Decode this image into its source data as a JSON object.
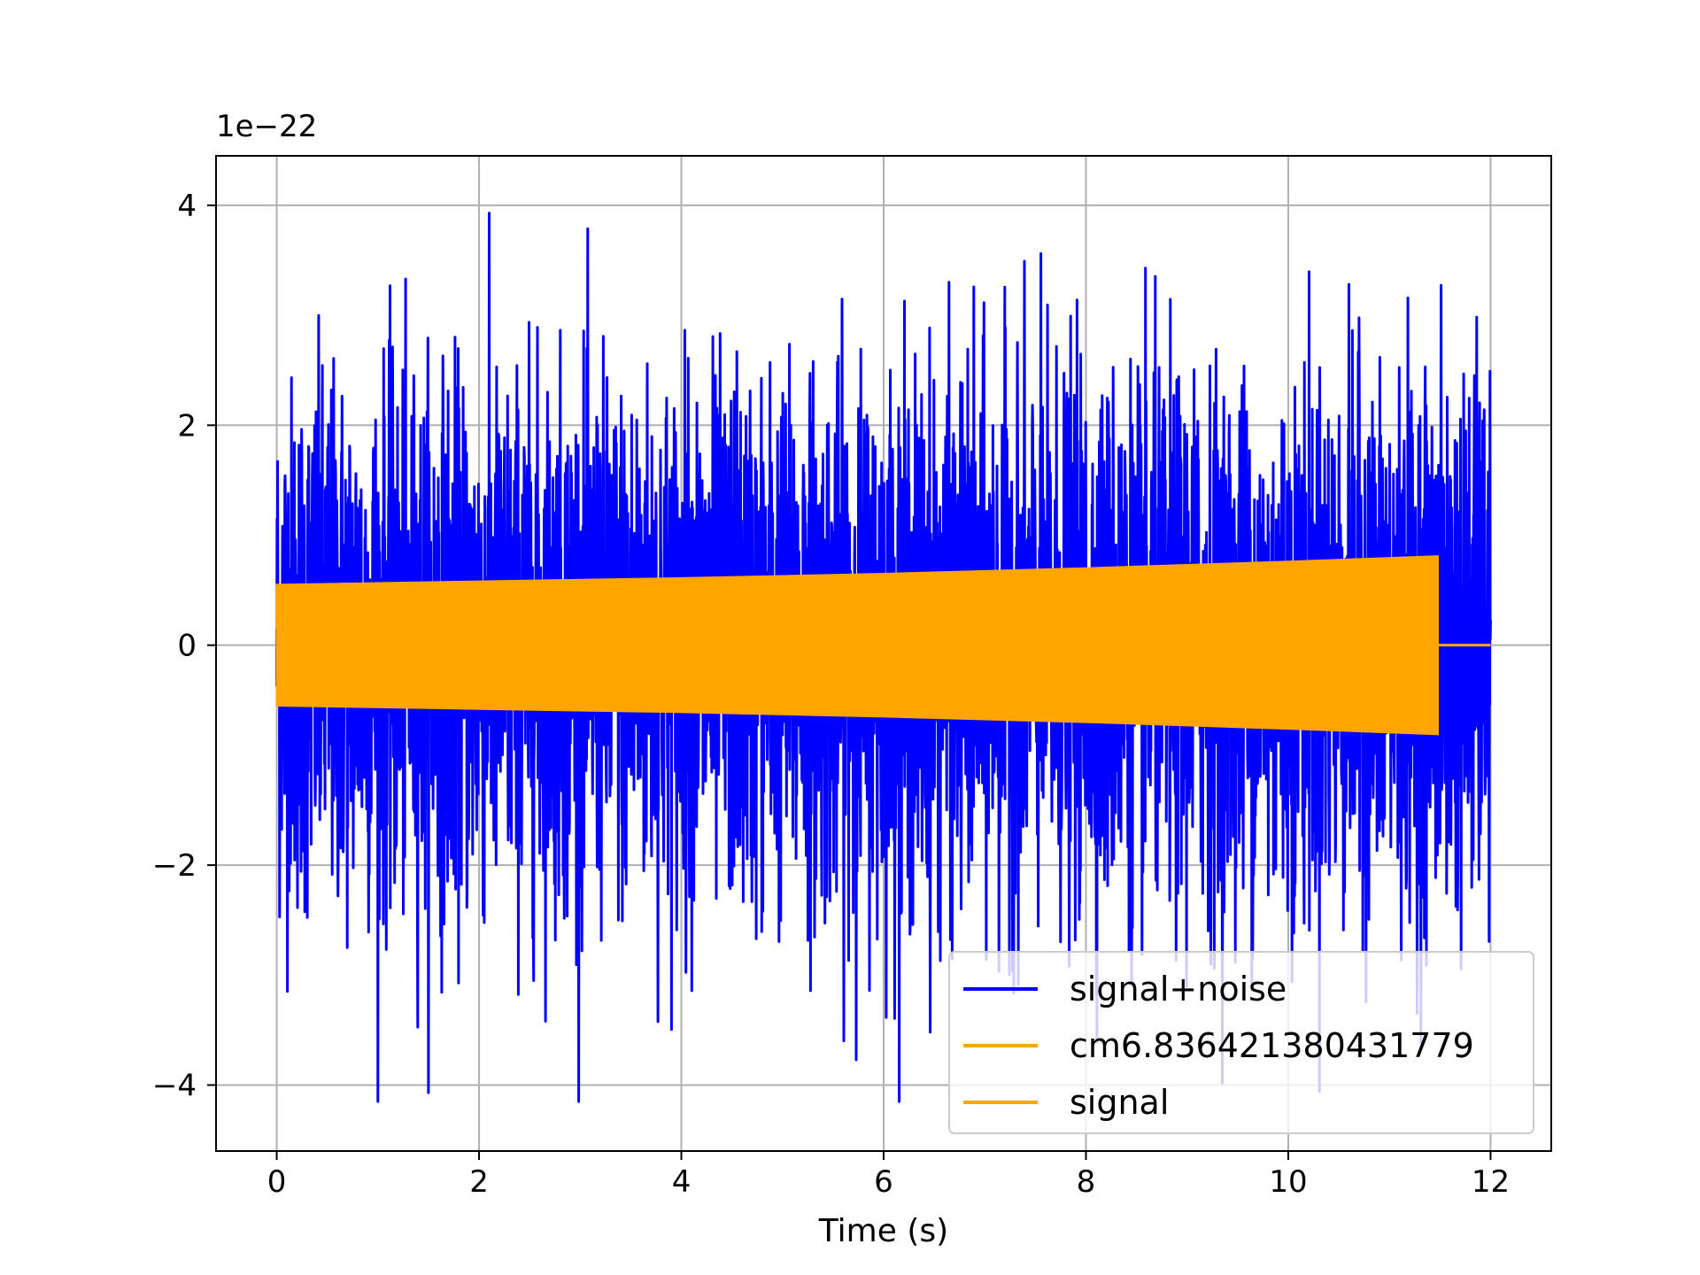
{
  "chart_data": {
    "type": "line",
    "title": "",
    "xlabel": "Time (s)",
    "ylabel": "",
    "y_offset_text": "1e−22",
    "xlim": [
      -0.6,
      12.6
    ],
    "ylim": [
      -4.6,
      4.45
    ],
    "x_ticks": [
      0,
      2,
      4,
      6,
      8,
      10,
      12
    ],
    "x_tick_labels": [
      "0",
      "2",
      "4",
      "6",
      "8",
      "10",
      "12"
    ],
    "y_ticks": [
      -4,
      -2,
      0,
      2,
      4
    ],
    "y_tick_labels": [
      "−4",
      "−2",
      "0",
      "2",
      "4"
    ],
    "grid": true,
    "legend_position": "lower-right",
    "series": [
      {
        "name": "signal+noise",
        "color": "#0000ff",
        "style": "noise",
        "x_range": [
          0,
          12
        ],
        "typical_amplitude": 1.2,
        "max": 4.05,
        "min": -4.15
      },
      {
        "name": "cm6.836421380431779",
        "color": "#ffa500",
        "style": "legend-only"
      },
      {
        "name": "signal",
        "color": "#ffa500",
        "style": "chirp-envelope",
        "x": [
          0.0,
          2.0,
          4.0,
          6.0,
          8.0,
          10.0,
          11.48
        ],
        "upper": [
          0.55,
          0.58,
          0.61,
          0.65,
          0.7,
          0.76,
          0.81
        ],
        "lower": [
          -0.55,
          -0.58,
          -0.61,
          -0.65,
          -0.7,
          -0.76,
          -0.81
        ],
        "after_end": {
          "x": [
            11.48,
            12.0
          ],
          "y": [
            0,
            0
          ]
        }
      }
    ]
  }
}
